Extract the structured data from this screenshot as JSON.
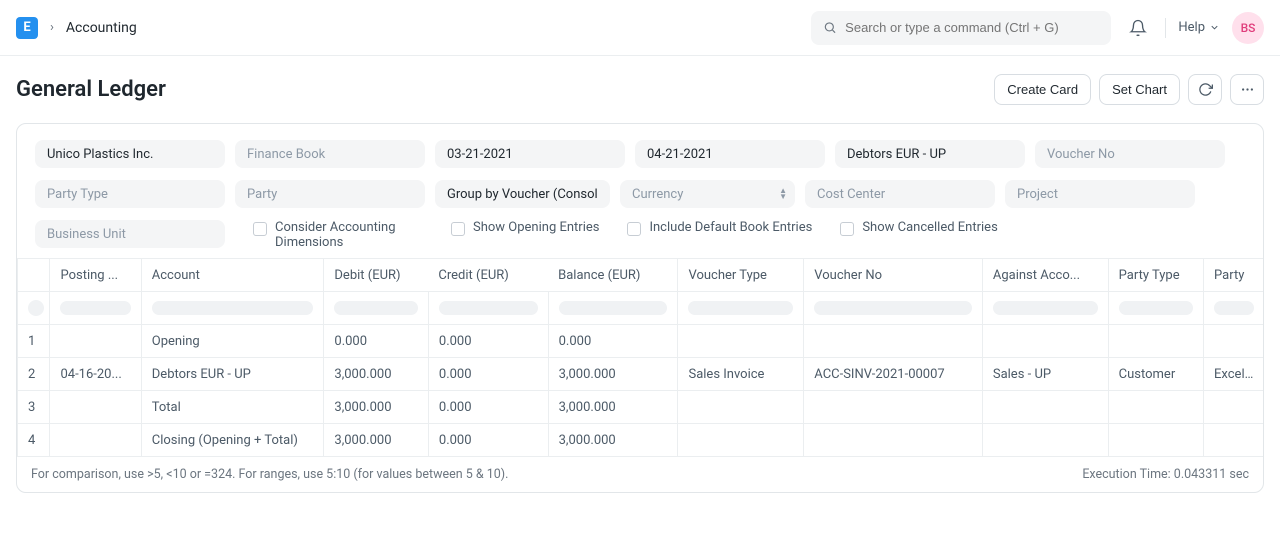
{
  "header": {
    "logo_letter": "E",
    "breadcrumb": "Accounting",
    "search_placeholder": "Search or type a command (Ctrl + G)",
    "help_label": "Help",
    "avatar_initials": "BS"
  },
  "page": {
    "title": "General Ledger",
    "create_card_label": "Create Card",
    "set_chart_label": "Set Chart"
  },
  "filters": {
    "company": "Unico Plastics Inc.",
    "finance_book_placeholder": "Finance Book",
    "from_date": "03-21-2021",
    "to_date": "04-21-2021",
    "account": "Debtors EUR - UP",
    "voucher_no_placeholder": "Voucher No",
    "party_type_placeholder": "Party Type",
    "party_placeholder": "Party",
    "group_by": "Group by Voucher (Consolidated)",
    "currency_placeholder": "Currency",
    "cost_center_placeholder": "Cost Center",
    "project_placeholder": "Project",
    "business_unit_placeholder": "Business Unit",
    "consider_dims_label": "Consider Accounting Dimensions",
    "show_opening_label": "Show Opening Entries",
    "include_default_label": "Include Default Book Entries",
    "show_cancelled_label": "Show Cancelled Entries"
  },
  "table": {
    "columns": {
      "posting": "Posting ...",
      "account": "Account",
      "debit": "Debit (EUR)",
      "credit": "Credit (EUR)",
      "balance": "Balance (EUR)",
      "voucher_type": "Voucher Type",
      "voucher_no": "Voucher No",
      "against": "Against Acco...",
      "party_type": "Party Type",
      "party": "Party"
    },
    "rows": [
      {
        "idx": "1",
        "posting": "",
        "account": "Opening",
        "debit": "0.000",
        "credit": "0.000",
        "balance": "0.000",
        "voucher_type": "",
        "voucher_no": "",
        "against": "",
        "party_type": "",
        "party": ""
      },
      {
        "idx": "2",
        "posting": "04-16-20...",
        "account": "Debtors EUR - UP",
        "debit": "3,000.000",
        "credit": "0.000",
        "balance": "3,000.000",
        "voucher_type": "Sales Invoice",
        "voucher_no": "ACC-SINV-2021-00007",
        "against": "Sales - UP",
        "party_type": "Customer",
        "party": "Excellent"
      },
      {
        "idx": "3",
        "posting": "",
        "account": "Total",
        "debit": "3,000.000",
        "credit": "0.000",
        "balance": "3,000.000",
        "voucher_type": "",
        "voucher_no": "",
        "against": "",
        "party_type": "",
        "party": ""
      },
      {
        "idx": "4",
        "posting": "",
        "account": "Closing (Opening + Total)",
        "debit": "3,000.000",
        "credit": "0.000",
        "balance": "3,000.000",
        "voucher_type": "",
        "voucher_no": "",
        "against": "",
        "party_type": "",
        "party": ""
      }
    ],
    "highlight_columns": [
      "debit",
      "credit",
      "balance"
    ],
    "highlight_color": "#e60000"
  },
  "footer": {
    "hint": "For comparison, use >5, <10 or =324. For ranges, use 5:10 (for values between 5 & 10).",
    "execution_time": "Execution Time: 0.043311 sec"
  },
  "colors": {
    "brand": "#2490ef",
    "border": "#e2e6e9",
    "muted": "#8d99a6",
    "text": "#1f272e",
    "field_bg": "#f4f5f6",
    "avatar_bg": "#ffe0ec",
    "avatar_fg": "#e03e7c"
  }
}
